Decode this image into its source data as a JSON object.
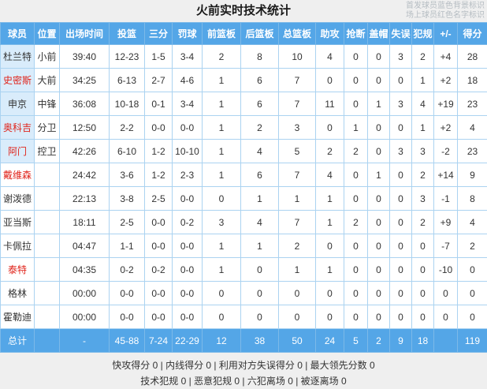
{
  "title": "火前实时技术统计",
  "legend": {
    "line1": "首发球员蓝色背景标识",
    "line2": "场上球员红色名字标识"
  },
  "columns": [
    "球员",
    "位置",
    "出场时间",
    "投篮",
    "三分",
    "罚球",
    "前篮板",
    "后篮板",
    "总篮板",
    "助攻",
    "抢断",
    "盖帽",
    "失误",
    "犯规",
    "+/-",
    "得分"
  ],
  "players": [
    {
      "name": "杜兰特",
      "red": false,
      "starter": true,
      "stats": [
        "小前",
        "39:40",
        "12-23",
        "1-5",
        "3-4",
        "2",
        "8",
        "10",
        "4",
        "0",
        "0",
        "3",
        "2",
        "+4",
        "28"
      ]
    },
    {
      "name": "史密斯",
      "red": true,
      "starter": true,
      "stats": [
        "大前",
        "34:25",
        "6-13",
        "2-7",
        "4-6",
        "1",
        "6",
        "7",
        "0",
        "0",
        "0",
        "0",
        "1",
        "+2",
        "18"
      ]
    },
    {
      "name": "申京",
      "red": false,
      "starter": true,
      "stats": [
        "中锋",
        "36:08",
        "10-18",
        "0-1",
        "3-4",
        "1",
        "6",
        "7",
        "11",
        "0",
        "1",
        "3",
        "4",
        "+19",
        "23"
      ]
    },
    {
      "name": "奥科吉",
      "red": true,
      "starter": true,
      "stats": [
        "分卫",
        "12:50",
        "2-2",
        "0-0",
        "0-0",
        "1",
        "2",
        "3",
        "0",
        "1",
        "0",
        "0",
        "1",
        "+2",
        "4"
      ]
    },
    {
      "name": "阿门",
      "red": true,
      "starter": true,
      "stats": [
        "控卫",
        "42:26",
        "6-10",
        "1-2",
        "10-10",
        "1",
        "4",
        "5",
        "2",
        "2",
        "0",
        "3",
        "3",
        "-2",
        "23"
      ]
    },
    {
      "name": "戴维森",
      "red": true,
      "starter": false,
      "stats": [
        "",
        "24:42",
        "3-6",
        "1-2",
        "2-3",
        "1",
        "6",
        "7",
        "4",
        "0",
        "1",
        "0",
        "2",
        "+14",
        "9"
      ]
    },
    {
      "name": "谢泼德",
      "red": false,
      "starter": false,
      "stats": [
        "",
        "22:13",
        "3-8",
        "2-5",
        "0-0",
        "0",
        "1",
        "1",
        "1",
        "0",
        "0",
        "0",
        "3",
        "-1",
        "8"
      ]
    },
    {
      "name": "亚当斯",
      "red": false,
      "starter": false,
      "stats": [
        "",
        "18:11",
        "2-5",
        "0-0",
        "0-2",
        "3",
        "4",
        "7",
        "1",
        "2",
        "0",
        "0",
        "2",
        "+9",
        "4"
      ]
    },
    {
      "name": "卡佩拉",
      "red": false,
      "starter": false,
      "stats": [
        "",
        "04:47",
        "1-1",
        "0-0",
        "0-0",
        "1",
        "1",
        "2",
        "0",
        "0",
        "0",
        "0",
        "0",
        "-7",
        "2"
      ]
    },
    {
      "name": "泰特",
      "red": true,
      "starter": false,
      "stats": [
        "",
        "04:35",
        "0-2",
        "0-2",
        "0-0",
        "1",
        "0",
        "1",
        "1",
        "0",
        "0",
        "0",
        "0",
        "-10",
        "0"
      ]
    },
    {
      "name": "格林",
      "red": false,
      "starter": false,
      "stats": [
        "",
        "00:00",
        "0-0",
        "0-0",
        "0-0",
        "0",
        "0",
        "0",
        "0",
        "0",
        "0",
        "0",
        "0",
        "0",
        "0"
      ]
    },
    {
      "name": "霍勒迪",
      "red": false,
      "starter": false,
      "stats": [
        "",
        "00:00",
        "0-0",
        "0-0",
        "0-0",
        "0",
        "0",
        "0",
        "0",
        "0",
        "0",
        "0",
        "0",
        "0",
        "0"
      ]
    }
  ],
  "totals": {
    "name": "总计",
    "stats": [
      "",
      "-",
      "45-88",
      "7-24",
      "22-29",
      "12",
      "38",
      "50",
      "24",
      "5",
      "2",
      "9",
      "18",
      "",
      "119"
    ]
  },
  "footer": {
    "line1": "快攻得分 0 | 内线得分 0 | 利用对方失误得分 0 | 最大领先分数 0",
    "line2": "技术犯规 0 | 恶意犯规 0 | 六犯离场 0 | 被逐离场 0"
  },
  "colors": {
    "header_bg": "#54a6e7",
    "starter_row_bg": "#d9ecfb",
    "grid_line": "#abd3f1",
    "oncourt_name_red": "#e0241b",
    "page_bg": "#efefef"
  }
}
